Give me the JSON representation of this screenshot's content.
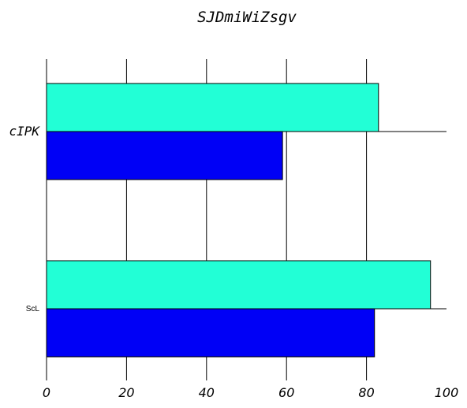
{
  "chart_data": {
    "type": "bar",
    "orientation": "horizontal",
    "title": "SJDmiWiZsgv",
    "xlabel": "",
    "ylabel": "",
    "categories": [
      "cIPK",
      "ScL"
    ],
    "series": [
      {
        "color": "#22ffd6",
        "values": [
          83,
          96
        ]
      },
      {
        "color": "#0000f6",
        "values": [
          59,
          82
        ]
      }
    ],
    "xlim": [
      0,
      100
    ],
    "xticks": [
      0,
      20,
      40,
      60,
      80,
      100
    ],
    "grid": true,
    "legend": false
  }
}
